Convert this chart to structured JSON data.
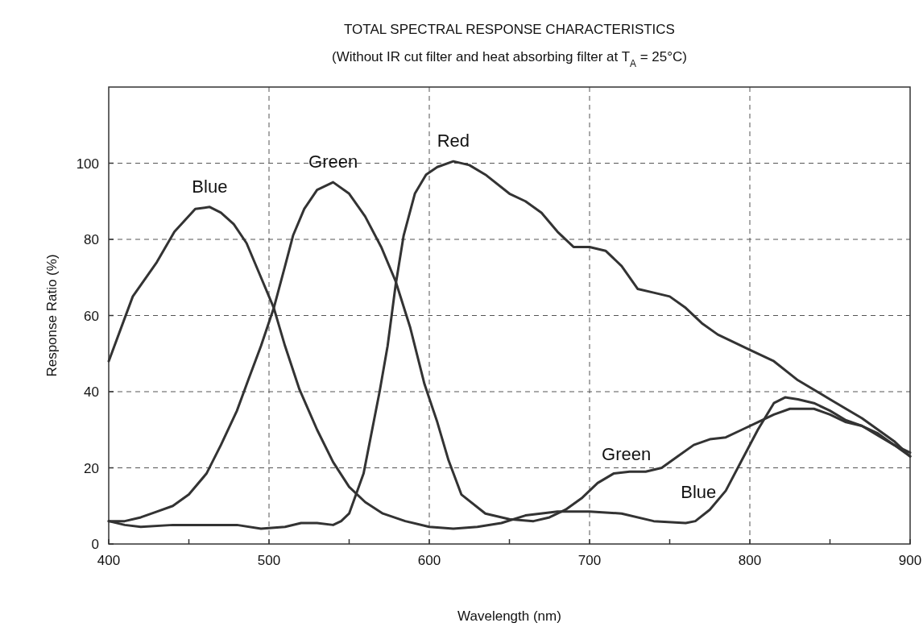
{
  "chart_data": {
    "type": "line",
    "title": "TOTAL SPECTRAL RESPONSE CHARACTERISTICS",
    "subtitle": "(Without IR cut filter and heat absorbing filter at T$_{A}$ = 25°C)",
    "xlabel": "Wavelength (nm)",
    "ylabel": "Response Ratio (%)",
    "xlim": [
      400,
      900
    ],
    "xticks": [
      400,
      {
        "value": 450,
        "label": null
      },
      500,
      {
        "value": 550,
        "label": null
      },
      600,
      {
        "value": 650,
        "label": null
      },
      700,
      {
        "value": 750,
        "label": null
      },
      800,
      {
        "value": 850,
        "label": null
      },
      900
    ],
    "ylim": [
      0,
      120
    ],
    "yticks": [
      0,
      20,
      40,
      60,
      80,
      100
    ],
    "grid": true,
    "line_style": "solid",
    "series": [
      {
        "name": "Blue",
        "color": "#333333",
        "x": [
          400,
          415,
          430,
          441,
          454,
          463,
          470,
          478,
          486,
          495,
          503,
          510,
          519,
          530,
          540,
          550,
          560,
          571,
          585,
          600,
          615,
          630,
          645,
          660,
          680,
          700,
          720,
          740,
          760,
          766,
          775,
          785,
          795,
          805,
          815,
          822,
          830,
          840,
          850,
          860,
          870,
          880,
          890,
          900
        ],
        "values": [
          48,
          65,
          74,
          82,
          88,
          88.5,
          87,
          84,
          79,
          70,
          62,
          52,
          40.6,
          30,
          21.5,
          15,
          11,
          8,
          6,
          4.5,
          4,
          4.5,
          5.5,
          7.5,
          8.5,
          8.5,
          8,
          6,
          5.5,
          6,
          9,
          14,
          22,
          30,
          37,
          38.5,
          38,
          37,
          35,
          32.5,
          31,
          28.5,
          26,
          23
        ]
      },
      {
        "name": "Green",
        "color": "#333333",
        "x": [
          400,
          410,
          420,
          430,
          440,
          450,
          461,
          470,
          480,
          487,
          495,
          503,
          510,
          515,
          522,
          530,
          540,
          550,
          560,
          570,
          579,
          588,
          597,
          605,
          612,
          620,
          635,
          650,
          665,
          675,
          685,
          695,
          705,
          715,
          725,
          735,
          745,
          755,
          765,
          775,
          785,
          795,
          805,
          815,
          825,
          840,
          850,
          860,
          870,
          880,
          890,
          900
        ],
        "values": [
          6,
          6,
          7,
          8.5,
          10,
          13,
          18.5,
          26,
          35,
          43,
          52,
          62,
          73,
          81,
          88,
          93,
          95,
          92,
          86,
          78,
          69,
          57,
          42,
          32,
          22,
          13,
          8,
          6.5,
          6,
          7,
          9,
          12,
          16,
          18.5,
          19,
          19,
          20,
          23,
          26,
          27.5,
          28,
          30,
          32,
          34,
          35.5,
          35.5,
          34,
          32,
          31,
          29,
          26,
          24
        ]
      },
      {
        "name": "Red",
        "color": "#333333",
        "x": [
          400,
          410,
          420,
          440,
          460,
          480,
          495,
          510,
          520,
          530,
          540,
          545,
          550,
          559,
          569,
          574,
          579,
          584,
          591,
          598,
          605,
          615,
          625,
          635,
          650,
          660,
          670,
          680,
          690,
          700,
          710,
          720,
          730,
          740,
          750,
          760,
          770,
          780,
          800,
          815,
          830,
          850,
          870,
          890,
          900
        ],
        "values": [
          6,
          5,
          4.5,
          5,
          5,
          5,
          4,
          4.5,
          5.5,
          5.5,
          5,
          6,
          8,
          18.5,
          40,
          52,
          68,
          81,
          92,
          97,
          99,
          100.5,
          99.5,
          97,
          92,
          90,
          87,
          82,
          78,
          78,
          77,
          73,
          67,
          66,
          65,
          62,
          58,
          55,
          51,
          48,
          43,
          38,
          33,
          27,
          23
        ]
      }
    ],
    "annotations": [
      {
        "text": "Green",
        "x": 730,
        "y": 19
      },
      {
        "text": "Blue",
        "x": 775,
        "y": 9
      }
    ]
  }
}
